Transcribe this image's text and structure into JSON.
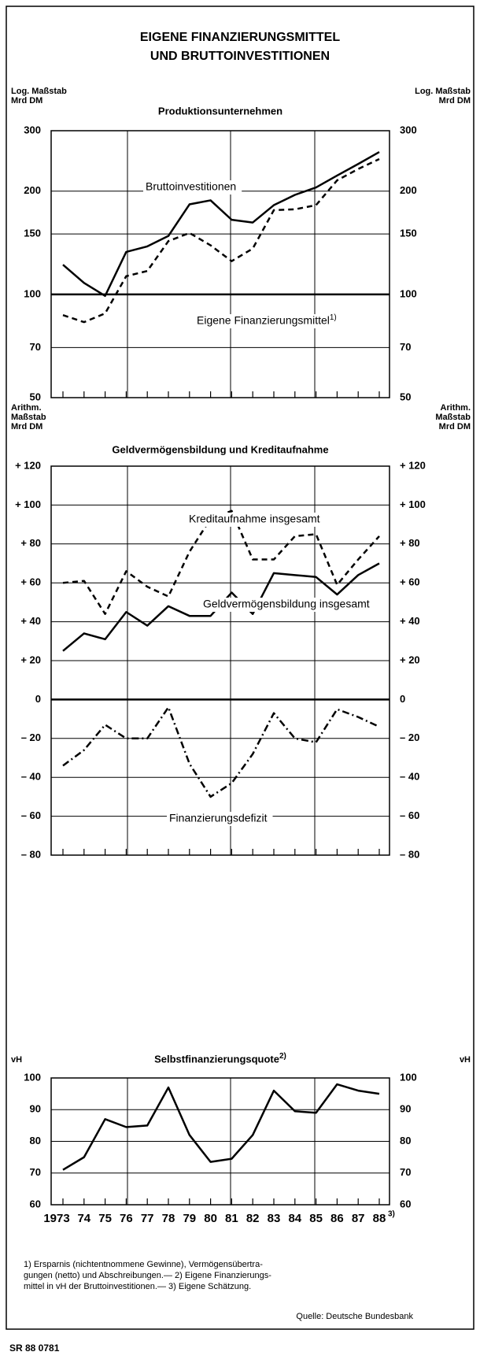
{
  "title": [
    "EIGENE FINANZIERUNGSMITTEL",
    "UND BRUTTOINVESTITIONEN"
  ],
  "chart_data": [
    {
      "type": "line",
      "title": "Produktionsunternehmen",
      "axis_label_lines": [
        "Log. Maßstab",
        "Mrd DM"
      ],
      "log_scale": true,
      "ylim": [
        50,
        300
      ],
      "yticks": [
        50,
        70,
        100,
        150,
        200,
        300
      ],
      "bold_tick": 100,
      "grid": true,
      "series": [
        {
          "name": "Bruttoinvestitionen",
          "color": "#000000",
          "dash": "solid",
          "values": [
            122,
            108,
            99,
            133,
            138,
            148,
            183,
            188,
            165,
            162,
            182,
            195,
            205,
            222,
            240,
            260
          ]
        },
        {
          "name": "Eigene Finanzierungsmittel",
          "note": "1)",
          "color": "#000000",
          "dash": "dashed",
          "values": [
            87,
            83,
            88,
            113,
            117,
            143,
            151,
            139,
            125,
            136,
            176,
            177,
            182,
            215,
            232,
            248
          ]
        }
      ]
    },
    {
      "type": "line",
      "title": "Geldvermögensbildung und Kreditaufnahme",
      "axis_label_lines": [
        "Arithm.",
        "Maßstab",
        "Mrd DM"
      ],
      "ylim": [
        -80,
        120
      ],
      "bold_tick": 0,
      "grid": true,
      "yticks": [
        {
          "value": -80,
          "label": "– 80"
        },
        {
          "value": -60,
          "label": "– 60"
        },
        {
          "value": -40,
          "label": "– 40"
        },
        {
          "value": -20,
          "label": "– 20"
        },
        0,
        {
          "value": 20,
          "label": "+ 20"
        },
        {
          "value": 40,
          "label": "+ 40"
        },
        {
          "value": 60,
          "label": "+ 60"
        },
        {
          "value": 80,
          "label": "+ 80"
        },
        {
          "value": 100,
          "label": "+ 100"
        },
        {
          "value": 120,
          "label": "+ 120"
        }
      ],
      "series": [
        {
          "name": "Kreditaufnahme insgesamt",
          "color": "#000000",
          "dash": "dashed",
          "values": [
            60,
            61,
            44,
            66,
            58,
            53,
            76,
            93,
            97,
            72,
            72,
            84,
            85,
            59,
            72,
            84
          ]
        },
        {
          "name": "Geldvermögensbildung insgesamt",
          "color": "#000000",
          "dash": "solid",
          "values": [
            25,
            34,
            31,
            45,
            38,
            48,
            43,
            43,
            55,
            44,
            65,
            64,
            63,
            54,
            64,
            70
          ]
        },
        {
          "name": "Finanzierungsdefizit",
          "color": "#000000",
          "dash": "dashdot",
          "values": [
            -34,
            -26,
            -13,
            -20,
            -20,
            -4,
            -33,
            -50,
            -43,
            -28,
            -7,
            -20,
            -22,
            -5,
            -9,
            -14
          ]
        }
      ]
    },
    {
      "type": "line",
      "title": "Selbstfinanzierungsquote",
      "title_note": "2)",
      "axis_label_lines": [
        "vH"
      ],
      "ylim": [
        60,
        100
      ],
      "yticks": [
        60,
        70,
        80,
        90,
        100
      ],
      "grid": true,
      "categories": [
        "1973",
        "74",
        "75",
        "76",
        "77",
        "78",
        "79",
        "80",
        "81",
        "82",
        "83",
        "84",
        "85",
        "86",
        "87",
        "88"
      ],
      "x_note": "3)",
      "series": [
        {
          "name": "Selbstfinanzierungsquote",
          "color": "#000000",
          "dash": "solid",
          "values": [
            71,
            75,
            87,
            84.5,
            85,
            97,
            82,
            73.5,
            74.5,
            82,
            96,
            89.5,
            89,
            98,
            96,
            95
          ]
        }
      ]
    }
  ],
  "footnotes": [
    "1) Ersparnis (nichtentnommene Gewinne), Vermögensübertra-",
    "gungen (netto) und Abschreibungen.— 2) Eigene Finanzierungs-",
    "mittel in vH der Bruttoinvestitionen.— 3) Eigene Schätzung."
  ],
  "source": "Quelle: Deutsche Bundesbank",
  "code": "SR 88 0781"
}
